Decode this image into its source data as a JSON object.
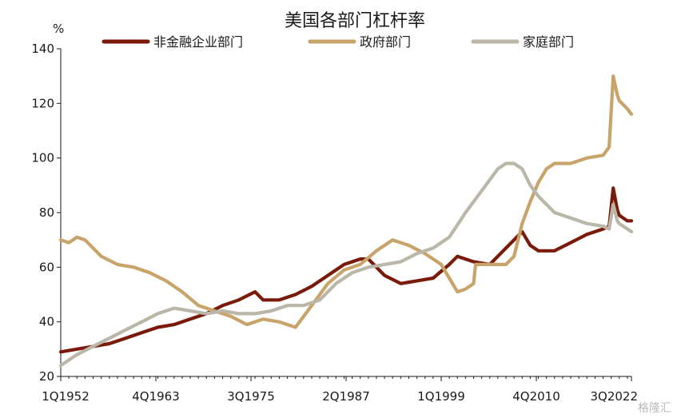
{
  "chart_data": {
    "type": "line",
    "title": "美国各部门杠杆率",
    "unit_label": "%",
    "ylim": [
      20,
      140
    ],
    "yticks": [
      20,
      40,
      60,
      80,
      100,
      120,
      140
    ],
    "x_start": "1Q1952",
    "x_end": "3Q2022",
    "xticks": [
      "1Q1952",
      "4Q1963",
      "3Q1975",
      "2Q1987",
      "1Q1999",
      "4Q2010",
      "3Q2022"
    ],
    "legend_position": "top",
    "grid": false,
    "series": [
      {
        "name": "非金融企业部门",
        "color": "#7a1a0a",
        "points": [
          [
            "1Q1952",
            29
          ],
          [
            "1Q1954",
            30
          ],
          [
            "1Q1956",
            31
          ],
          [
            "1Q1958",
            32
          ],
          [
            "1Q1960",
            34
          ],
          [
            "1Q1962",
            36
          ],
          [
            "1Q1964",
            38
          ],
          [
            "1Q1966",
            39
          ],
          [
            "1Q1968",
            41
          ],
          [
            "1Q1970",
            43
          ],
          [
            "1Q1972",
            46
          ],
          [
            "1Q1974",
            48
          ],
          [
            "1Q1976",
            51
          ],
          [
            "1Q1977",
            48
          ],
          [
            "1Q1979",
            48
          ],
          [
            "1Q1981",
            50
          ],
          [
            "1Q1983",
            53
          ],
          [
            "1Q1985",
            57
          ],
          [
            "1Q1987",
            61
          ],
          [
            "1Q1989",
            63
          ],
          [
            "1Q1990",
            63
          ],
          [
            "1Q1992",
            57
          ],
          [
            "1Q1994",
            54
          ],
          [
            "1Q1996",
            55
          ],
          [
            "1Q1998",
            56
          ],
          [
            "1Q2000",
            61
          ],
          [
            "1Q2001",
            64
          ],
          [
            "1Q2002",
            63
          ],
          [
            "1Q2003",
            62
          ],
          [
            "1Q2005",
            61
          ],
          [
            "1Q2007",
            67
          ],
          [
            "1Q2009",
            73
          ],
          [
            "1Q2010",
            68
          ],
          [
            "1Q2011",
            66
          ],
          [
            "1Q2013",
            66
          ],
          [
            "1Q2015",
            69
          ],
          [
            "1Q2017",
            72
          ],
          [
            "1Q2019",
            74
          ],
          [
            "4Q2019",
            75
          ],
          [
            "2Q2020",
            89
          ],
          [
            "4Q2020",
            81
          ],
          [
            "1Q2021",
            79
          ],
          [
            "1Q2022",
            77
          ],
          [
            "3Q2022",
            77
          ]
        ]
      },
      {
        "name": "政府部门",
        "color": "#c8a46a",
        "points": [
          [
            "1Q1952",
            70
          ],
          [
            "1Q1953",
            69
          ],
          [
            "1Q1954",
            71
          ],
          [
            "1Q1955",
            70
          ],
          [
            "1Q1957",
            64
          ],
          [
            "1Q1959",
            61
          ],
          [
            "1Q1961",
            60
          ],
          [
            "1Q1963",
            58
          ],
          [
            "1Q1965",
            55
          ],
          [
            "1Q1967",
            51
          ],
          [
            "1Q1969",
            46
          ],
          [
            "1Q1971",
            44
          ],
          [
            "1Q1973",
            42
          ],
          [
            "1Q1975",
            39
          ],
          [
            "1Q1977",
            41
          ],
          [
            "1Q1979",
            40
          ],
          [
            "1Q1981",
            38
          ],
          [
            "1Q1983",
            46
          ],
          [
            "1Q1985",
            54
          ],
          [
            "1Q1987",
            59
          ],
          [
            "1Q1989",
            61
          ],
          [
            "1Q1991",
            66
          ],
          [
            "1Q1993",
            70
          ],
          [
            "1Q1995",
            68
          ],
          [
            "1Q1997",
            65
          ],
          [
            "1Q1999",
            61
          ],
          [
            "1Q2000",
            56
          ],
          [
            "1Q2001",
            51
          ],
          [
            "1Q2002",
            52
          ],
          [
            "1Q2003",
            54
          ],
          [
            "2Q2003",
            61
          ],
          [
            "1Q2005",
            61
          ],
          [
            "1Q2007",
            61
          ],
          [
            "1Q2008",
            64
          ],
          [
            "1Q2009",
            76
          ],
          [
            "1Q2010",
            84
          ],
          [
            "1Q2011",
            91
          ],
          [
            "1Q2012",
            96
          ],
          [
            "1Q2013",
            98
          ],
          [
            "1Q2015",
            98
          ],
          [
            "1Q2017",
            100
          ],
          [
            "1Q2019",
            101
          ],
          [
            "4Q2019",
            104
          ],
          [
            "2Q2020",
            130
          ],
          [
            "4Q2020",
            123
          ],
          [
            "1Q2021",
            121
          ],
          [
            "1Q2022",
            118
          ],
          [
            "3Q2022",
            116
          ]
        ]
      },
      {
        "name": "家庭部门",
        "color": "#bab6a8",
        "points": [
          [
            "1Q1952",
            24
          ],
          [
            "1Q1954",
            28
          ],
          [
            "1Q1956",
            31
          ],
          [
            "1Q1958",
            34
          ],
          [
            "1Q1960",
            37
          ],
          [
            "1Q1962",
            40
          ],
          [
            "1Q1964",
            43
          ],
          [
            "1Q1966",
            45
          ],
          [
            "1Q1968",
            44
          ],
          [
            "1Q1970",
            43
          ],
          [
            "1Q1972",
            44
          ],
          [
            "1Q1974",
            43
          ],
          [
            "1Q1976",
            43
          ],
          [
            "1Q1978",
            44
          ],
          [
            "1Q1980",
            46
          ],
          [
            "1Q1982",
            46
          ],
          [
            "1Q1984",
            48
          ],
          [
            "1Q1986",
            54
          ],
          [
            "1Q1988",
            58
          ],
          [
            "1Q1990",
            60
          ],
          [
            "1Q1992",
            61
          ],
          [
            "1Q1994",
            62
          ],
          [
            "1Q1996",
            65
          ],
          [
            "1Q1998",
            67
          ],
          [
            "1Q2000",
            71
          ],
          [
            "1Q2002",
            80
          ],
          [
            "1Q2004",
            88
          ],
          [
            "1Q2006",
            96
          ],
          [
            "1Q2007",
            98
          ],
          [
            "1Q2008",
            98
          ],
          [
            "1Q2009",
            96
          ],
          [
            "1Q2010",
            90
          ],
          [
            "1Q2011",
            86
          ],
          [
            "1Q2013",
            80
          ],
          [
            "1Q2015",
            78
          ],
          [
            "1Q2017",
            76
          ],
          [
            "1Q2019",
            75
          ],
          [
            "4Q2019",
            74
          ],
          [
            "2Q2020",
            83
          ],
          [
            "4Q2020",
            77
          ],
          [
            "1Q2021",
            76
          ],
          [
            "1Q2022",
            74
          ],
          [
            "3Q2022",
            73
          ]
        ]
      }
    ]
  },
  "watermark": "格隆汇"
}
